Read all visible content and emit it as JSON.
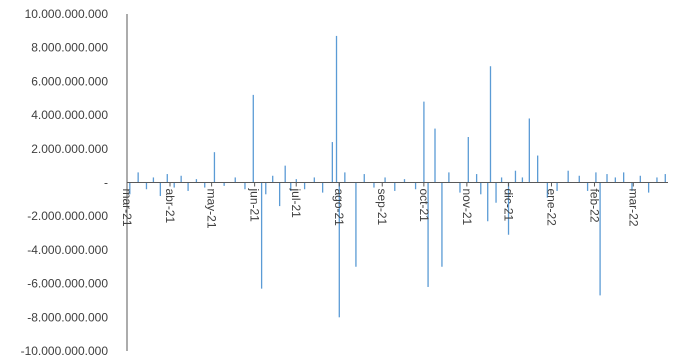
{
  "chart_data": {
    "type": "bar",
    "title": "",
    "xlabel": "",
    "ylabel": "",
    "ylim": [
      -10000000000,
      10000000000
    ],
    "y_ticks": [
      10000000000,
      8000000000,
      6000000000,
      4000000000,
      2000000000,
      0,
      -2000000000,
      -4000000000,
      -6000000000,
      -8000000000,
      -10000000000
    ],
    "y_tick_labels": [
      "10.000.000.000",
      "8.000.000.000",
      "6.000.000.000",
      "4.000.000.000",
      "2.000.000.000",
      "-",
      "-2.000.000.000",
      "-4.000.000.000",
      "-6.000.000.000",
      "-8.000.000.000",
      "-10.000.000.000"
    ],
    "x_range": [
      0,
      390
    ],
    "x_ticks": [
      0,
      31,
      61,
      92,
      122,
      153,
      184,
      214,
      245,
      275,
      306,
      337,
      365
    ],
    "x_tick_labels": [
      "mar-21",
      "abr-21",
      "may-21",
      "jun-21",
      "jul-21",
      "ago-21",
      "sep-21",
      "oct-21",
      "nov-21",
      "dic-21",
      "ene-22",
      "feb-22",
      "mar-22"
    ],
    "grid": false,
    "legend": "none",
    "bar_color": "#5b9bd5",
    "series": [
      {
        "x": [
          2,
          8,
          14,
          19,
          24,
          29,
          34,
          39,
          44,
          50,
          56,
          63,
          70,
          78,
          85,
          91,
          97,
          100,
          105,
          110,
          114,
          118,
          122,
          128,
          135,
          141,
          148,
          151,
          153,
          157,
          165,
          171,
          178,
          186,
          193,
          200,
          208,
          214,
          217,
          222,
          227,
          232,
          240,
          246,
          252,
          255,
          260,
          262,
          266,
          270,
          275,
          280,
          285,
          290,
          296,
          303,
          310,
          318,
          326,
          332,
          338,
          341,
          346,
          352,
          358,
          364,
          370,
          376,
          382,
          388
        ],
        "values": [
          -700000000,
          600000000,
          -400000000,
          300000000,
          -800000000,
          500000000,
          -300000000,
          400000000,
          -500000000,
          200000000,
          -300000000,
          1800000000,
          -200000000,
          300000000,
          -400000000,
          5200000000,
          -6300000000,
          -700000000,
          400000000,
          -1400000000,
          1000000000,
          -500000000,
          200000000,
          -400000000,
          300000000,
          -600000000,
          2400000000,
          8700000000,
          -8000000000,
          600000000,
          -5000000000,
          500000000,
          -300000000,
          300000000,
          -500000000,
          200000000,
          -400000000,
          4800000000,
          -6200000000,
          3200000000,
          -5000000000,
          600000000,
          -600000000,
          2700000000,
          500000000,
          -700000000,
          -2300000000,
          6900000000,
          -1200000000,
          300000000,
          -3100000000,
          700000000,
          300000000,
          3800000000,
          1600000000,
          -900000000,
          -500000000,
          700000000,
          400000000,
          -500000000,
          600000000,
          -6700000000,
          500000000,
          300000000,
          600000000,
          -500000000,
          400000000,
          -600000000,
          300000000,
          500000000
        ]
      }
    ]
  }
}
